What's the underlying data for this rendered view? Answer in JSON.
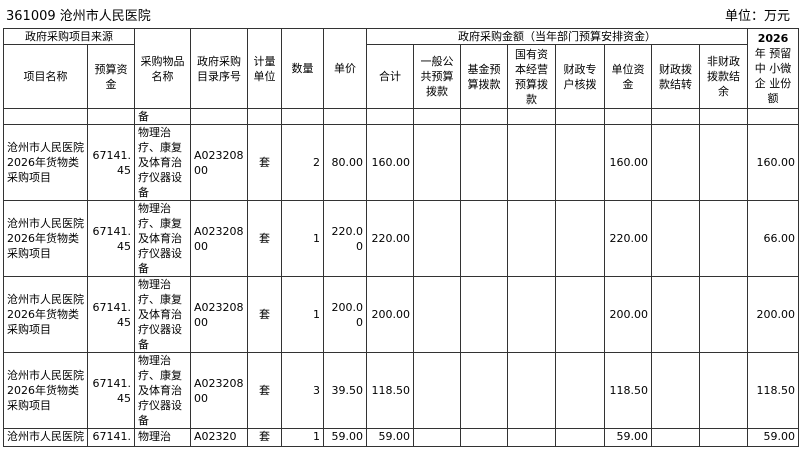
{
  "header": {
    "title": "361009 沧州市人民医院",
    "unit": "单位：万元"
  },
  "columns": {
    "source_group": "政府采购项目来源",
    "amount_group": "政府采购金额（当年部门预算安排资金）",
    "project_name": "项目名称",
    "budget": "预算资金",
    "item_name": "采购物品名称",
    "catalog_no": "政府采购目录序号",
    "unit": "计量单位",
    "qty": "数量",
    "price": "单价",
    "total": "合计",
    "general_budget": "一般公共预算拨款",
    "fund_budget": "基金预算拨款",
    "state_capital": "国有资本经营预算拨款",
    "special_account": "财政专户核拨",
    "unit_fund": "单位资金",
    "carryover": "财政拨款结转",
    "non_fiscal_carryover": "非财政拨款结余",
    "sme_year": "2026",
    "sme_label": "年 预留 中 小微 企 业份 额"
  },
  "continuation": {
    "item_name": "备"
  },
  "rows": [
    {
      "project_name": "沧州市人民医院2026年货物类采购项目",
      "budget": "67141.45",
      "item_name": "物理治疗、康复及体育治疗仪器设备",
      "catalog_no": "A02320800",
      "unit": "套",
      "qty": "2",
      "price": "80.00",
      "total": "160.00",
      "general_budget": "",
      "fund_budget": "",
      "state_capital": "",
      "special_account": "",
      "unit_fund": "160.00",
      "carryover": "",
      "non_fiscal_carryover": "",
      "sme": "160.00"
    },
    {
      "project_name": "沧州市人民医院2026年货物类采购项目",
      "budget": "67141.45",
      "item_name": "物理治疗、康复及体育治疗仪器设备",
      "catalog_no": "A02320800",
      "unit": "套",
      "qty": "1",
      "price": "220.00",
      "total": "220.00",
      "general_budget": "",
      "fund_budget": "",
      "state_capital": "",
      "special_account": "",
      "unit_fund": "220.00",
      "carryover": "",
      "non_fiscal_carryover": "",
      "sme": "66.00"
    },
    {
      "project_name": "沧州市人民医院2026年货物类采购项目",
      "budget": "67141.45",
      "item_name": "物理治疗、康复及体育治疗仪器设备",
      "catalog_no": "A02320800",
      "unit": "套",
      "qty": "1",
      "price": "200.00",
      "total": "200.00",
      "general_budget": "",
      "fund_budget": "",
      "state_capital": "",
      "special_account": "",
      "unit_fund": "200.00",
      "carryover": "",
      "non_fiscal_carryover": "",
      "sme": "200.00"
    },
    {
      "project_name": "沧州市人民医院2026年货物类采购项目",
      "budget": "67141.45",
      "item_name": "物理治疗、康复及体育治疗仪器设备",
      "catalog_no": "A02320800",
      "unit": "套",
      "qty": "3",
      "price": "39.50",
      "total": "118.50",
      "general_budget": "",
      "fund_budget": "",
      "state_capital": "",
      "special_account": "",
      "unit_fund": "118.50",
      "carryover": "",
      "non_fiscal_carryover": "",
      "sme": "118.50"
    },
    {
      "project_name": "沧州市人民医院",
      "budget": "67141.",
      "item_name": "物理治",
      "catalog_no": "A02320",
      "unit": "套",
      "qty": "1",
      "price": "59.00",
      "total": "59.00",
      "general_budget": "",
      "fund_budget": "",
      "state_capital": "",
      "special_account": "",
      "unit_fund": "59.00",
      "carryover": "",
      "non_fiscal_carryover": "",
      "sme": "59.00"
    }
  ]
}
